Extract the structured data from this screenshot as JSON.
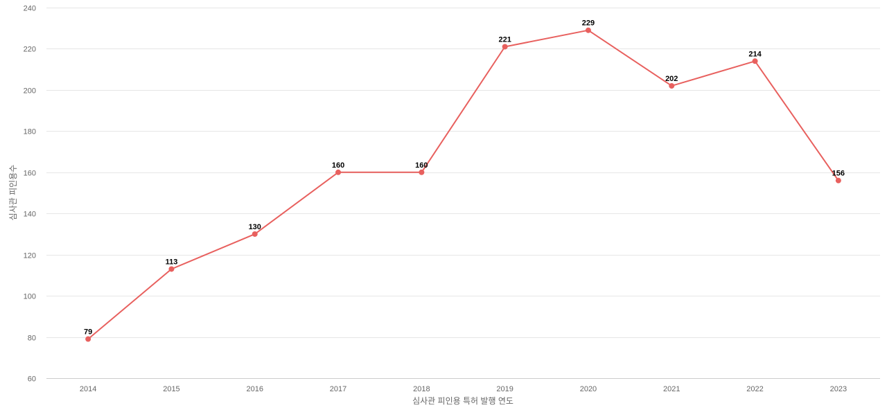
{
  "chart_data": {
    "type": "line",
    "title": "",
    "xlabel": "심사관 피인용 특허 발행 연도",
    "ylabel": "심사관 피인용수",
    "categories": [
      "2014",
      "2015",
      "2016",
      "2017",
      "2018",
      "2019",
      "2020",
      "2021",
      "2022",
      "2023"
    ],
    "series": [
      {
        "values": [
          79,
          113,
          130,
          160,
          160,
          221,
          229,
          202,
          214,
          156
        ],
        "color": "#e8605e"
      }
    ],
    "ylim": [
      60,
      240
    ],
    "yticks": [
      60,
      80,
      100,
      120,
      140,
      160,
      180,
      200,
      220,
      240
    ],
    "grid": true,
    "data_labels": true,
    "legend": "none"
  }
}
